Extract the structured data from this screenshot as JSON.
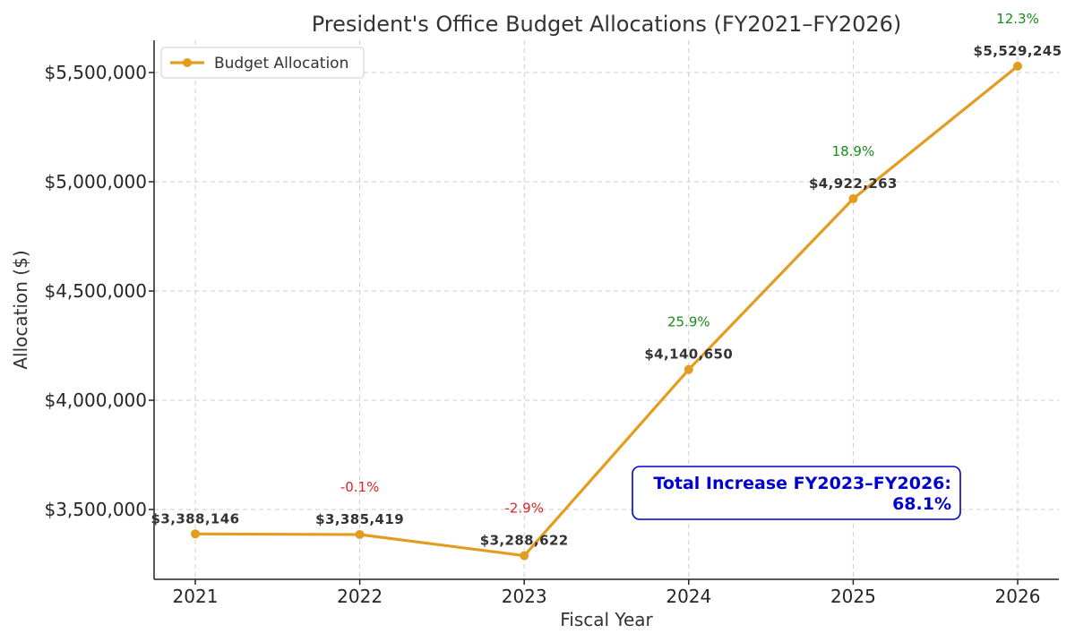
{
  "chart_data": {
    "type": "line",
    "title": "President's Office Budget Allocations (FY2021–FY2026)",
    "xlabel": "Fiscal Year",
    "ylabel": "Allocation ($)",
    "x": [
      "2021",
      "2022",
      "2023",
      "2024",
      "2025",
      "2026"
    ],
    "y_ticks": [
      {
        "value": 3500000,
        "label": "$3,500,000"
      },
      {
        "value": 4000000,
        "label": "$4,000,000"
      },
      {
        "value": 4500000,
        "label": "$4,500,000"
      },
      {
        "value": 5000000,
        "label": "$5,000,000"
      },
      {
        "value": 5500000,
        "label": "$5,500,000"
      }
    ],
    "ylim": [
      3200000,
      5650000
    ],
    "grid": true,
    "legend_position": "top-left",
    "series": [
      {
        "name": "Budget Allocation",
        "color": "#e29d1f",
        "values": [
          3388146,
          3385419,
          3288622,
          4140650,
          4922263,
          5529245
        ],
        "value_labels": [
          "$3,388,146",
          "$3,385,419",
          "$3,288,622",
          "$4,140,650",
          "$4,922,263",
          "$5,529,245"
        ]
      }
    ],
    "pct_changes": [
      {
        "x": "2022",
        "label": "-0.1%",
        "color": "#d62728"
      },
      {
        "x": "2023",
        "label": "-2.9%",
        "color": "#d62728"
      },
      {
        "x": "2024",
        "label": "25.9%",
        "color": "#1a8a1a"
      },
      {
        "x": "2025",
        "label": "18.9%",
        "color": "#1a8a1a"
      },
      {
        "x": "2026",
        "label": "12.3%",
        "color": "#1a8a1a"
      }
    ],
    "annotation": {
      "line1": "Total Increase FY2023–FY2026:",
      "line2": "68.1%",
      "color": "#0000cc"
    }
  }
}
